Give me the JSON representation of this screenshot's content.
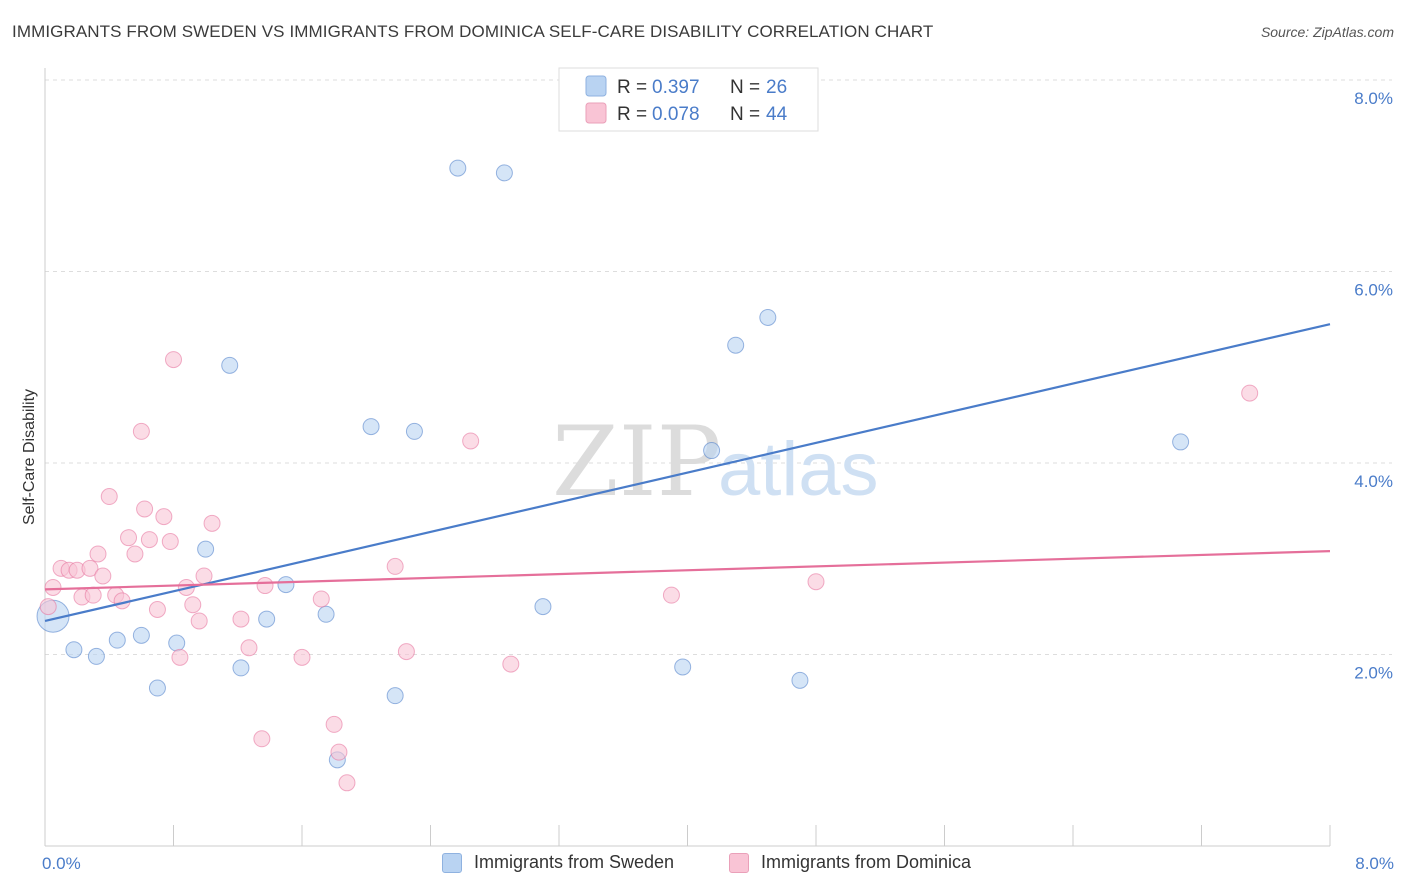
{
  "chart_data": {
    "type": "scatter",
    "title": "IMMIGRANTS FROM SWEDEN VS IMMIGRANTS FROM DOMINICA SELF-CARE DISABILITY CORRELATION CHART",
    "source": "Source: ZipAtlas.com",
    "ylabel": "Self-Care Disability",
    "xlim": [
      0,
      8
    ],
    "ylim": [
      0,
      8
    ],
    "x_tick_labels": [
      "0.0%",
      "8.0%"
    ],
    "y_ticks": [
      {
        "value": 2,
        "label": "2.0%"
      },
      {
        "value": 4,
        "label": "4.0%"
      },
      {
        "value": 6,
        "label": "6.0%"
      },
      {
        "value": 8,
        "label": "8.0%"
      }
    ],
    "watermark": {
      "part1": "ZIP",
      "part2": "atlas"
    },
    "legend": [
      {
        "r_label": "R =",
        "r_value": "0.397",
        "n_label": "N =",
        "n_value": "26"
      },
      {
        "r_label": "R =",
        "r_value": "0.078",
        "n_label": "N =",
        "n_value": "44"
      }
    ],
    "series": [
      {
        "name": "Immigrants from Sweden",
        "color": "#4a7cc9",
        "fill": "#b9d3f2",
        "trend": {
          "x": [
            0,
            8
          ],
          "y": [
            2.35,
            5.45
          ]
        },
        "points": [
          [
            0.05,
            2.4
          ],
          [
            0.18,
            2.05
          ],
          [
            0.32,
            1.98
          ],
          [
            0.45,
            2.15
          ],
          [
            0.6,
            2.2
          ],
          [
            0.7,
            1.65
          ],
          [
            0.82,
            2.12
          ],
          [
            1.0,
            3.1
          ],
          [
            1.15,
            5.02
          ],
          [
            1.22,
            1.86
          ],
          [
            1.38,
            2.37
          ],
          [
            1.5,
            2.73
          ],
          [
            1.75,
            2.42
          ],
          [
            1.82,
            0.9
          ],
          [
            2.03,
            4.38
          ],
          [
            2.18,
            1.57
          ],
          [
            2.3,
            4.33
          ],
          [
            2.57,
            7.08
          ],
          [
            2.86,
            7.03
          ],
          [
            3.1,
            2.5
          ],
          [
            3.97,
            1.87
          ],
          [
            4.15,
            4.13
          ],
          [
            4.3,
            5.23
          ],
          [
            4.5,
            5.52
          ],
          [
            4.7,
            1.73
          ],
          [
            7.07,
            4.22
          ]
        ]
      },
      {
        "name": "Immigrants from Dominica",
        "color": "#e56f9a",
        "fill": "#f9c4d5",
        "trend": {
          "x": [
            0,
            8
          ],
          "y": [
            2.68,
            3.08
          ]
        },
        "points": [
          [
            0.02,
            2.5
          ],
          [
            0.05,
            2.7
          ],
          [
            0.1,
            2.9
          ],
          [
            0.15,
            2.88
          ],
          [
            0.2,
            2.88
          ],
          [
            0.23,
            2.6
          ],
          [
            0.28,
            2.9
          ],
          [
            0.3,
            2.62
          ],
          [
            0.33,
            3.05
          ],
          [
            0.36,
            2.82
          ],
          [
            0.4,
            3.65
          ],
          [
            0.44,
            2.62
          ],
          [
            0.48,
            2.56
          ],
          [
            0.52,
            3.22
          ],
          [
            0.56,
            3.05
          ],
          [
            0.6,
            4.33
          ],
          [
            0.62,
            3.52
          ],
          [
            0.65,
            3.2
          ],
          [
            0.7,
            2.47
          ],
          [
            0.74,
            3.44
          ],
          [
            0.78,
            3.18
          ],
          [
            0.8,
            5.08
          ],
          [
            0.84,
            1.97
          ],
          [
            0.88,
            2.7
          ],
          [
            0.92,
            2.52
          ],
          [
            0.96,
            2.35
          ],
          [
            0.99,
            2.82
          ],
          [
            1.04,
            3.37
          ],
          [
            1.22,
            2.37
          ],
          [
            1.27,
            2.07
          ],
          [
            1.35,
            1.12
          ],
          [
            1.37,
            2.72
          ],
          [
            1.6,
            1.97
          ],
          [
            1.72,
            2.58
          ],
          [
            1.8,
            1.27
          ],
          [
            1.83,
            0.98
          ],
          [
            1.88,
            0.66
          ],
          [
            2.18,
            2.92
          ],
          [
            2.25,
            2.03
          ],
          [
            2.65,
            4.23
          ],
          [
            2.9,
            1.9
          ],
          [
            3.9,
            2.62
          ],
          [
            4.8,
            2.76
          ],
          [
            7.5,
            4.73
          ]
        ]
      }
    ]
  }
}
